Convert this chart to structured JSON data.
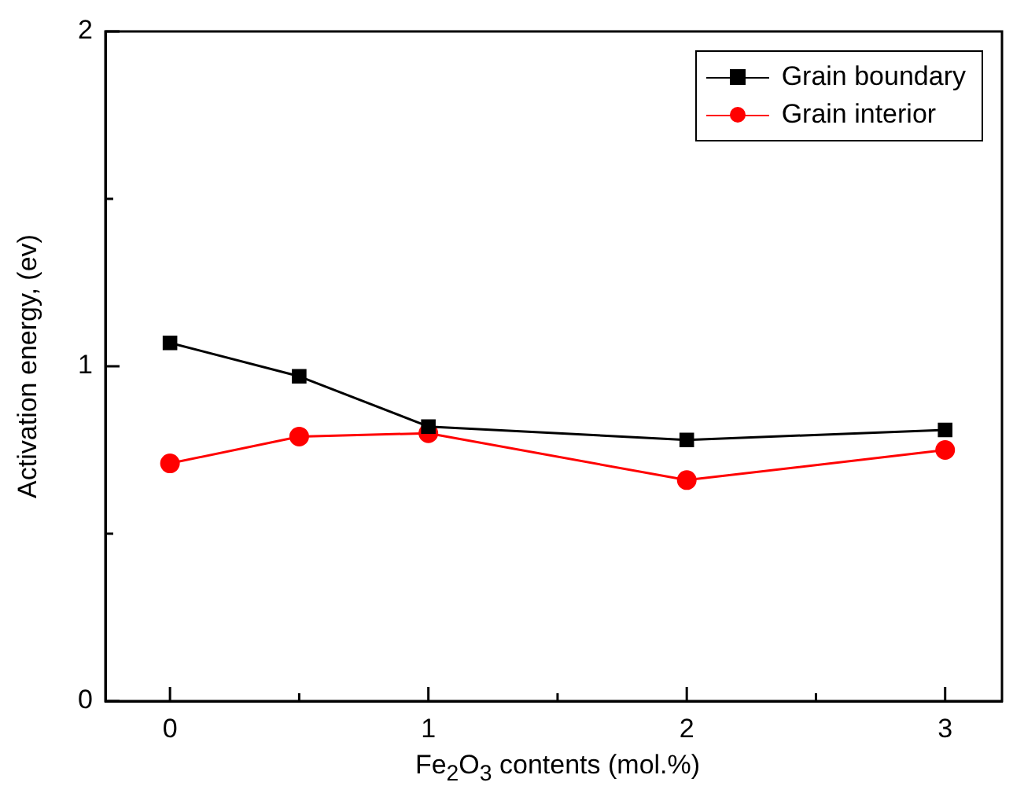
{
  "chart_data": {
    "type": "line",
    "xlabel": "Fe$_{2}$O$_{3}$ contents (mol.%)",
    "ylabel": "Activation energy, (ev)",
    "x": [
      0,
      0.5,
      1,
      2,
      3
    ],
    "series": [
      {
        "name": "Grain boundary",
        "color": "#000000",
        "marker": "square",
        "values": [
          1.07,
          0.97,
          0.82,
          0.78,
          0.81
        ]
      },
      {
        "name": "Grain interior",
        "color": "#ff0000",
        "marker": "circle",
        "values": [
          0.71,
          0.79,
          0.8,
          0.66,
          0.75
        ]
      }
    ],
    "xlim": [
      -0.25,
      3.22
    ],
    "ylim": [
      0,
      2
    ],
    "xticks": [
      0,
      {
        "value": 0.5,
        "label": null
      },
      1,
      {
        "value": 1.5,
        "label": null
      },
      2,
      {
        "value": 2.5,
        "label": null
      },
      3
    ],
    "yticks": [
      0,
      {
        "value": 0.5,
        "label": null
      },
      1,
      {
        "value": 1.5,
        "label": null
      },
      2
    ],
    "grid": false,
    "legend": "top right",
    "line_style": "solid"
  }
}
